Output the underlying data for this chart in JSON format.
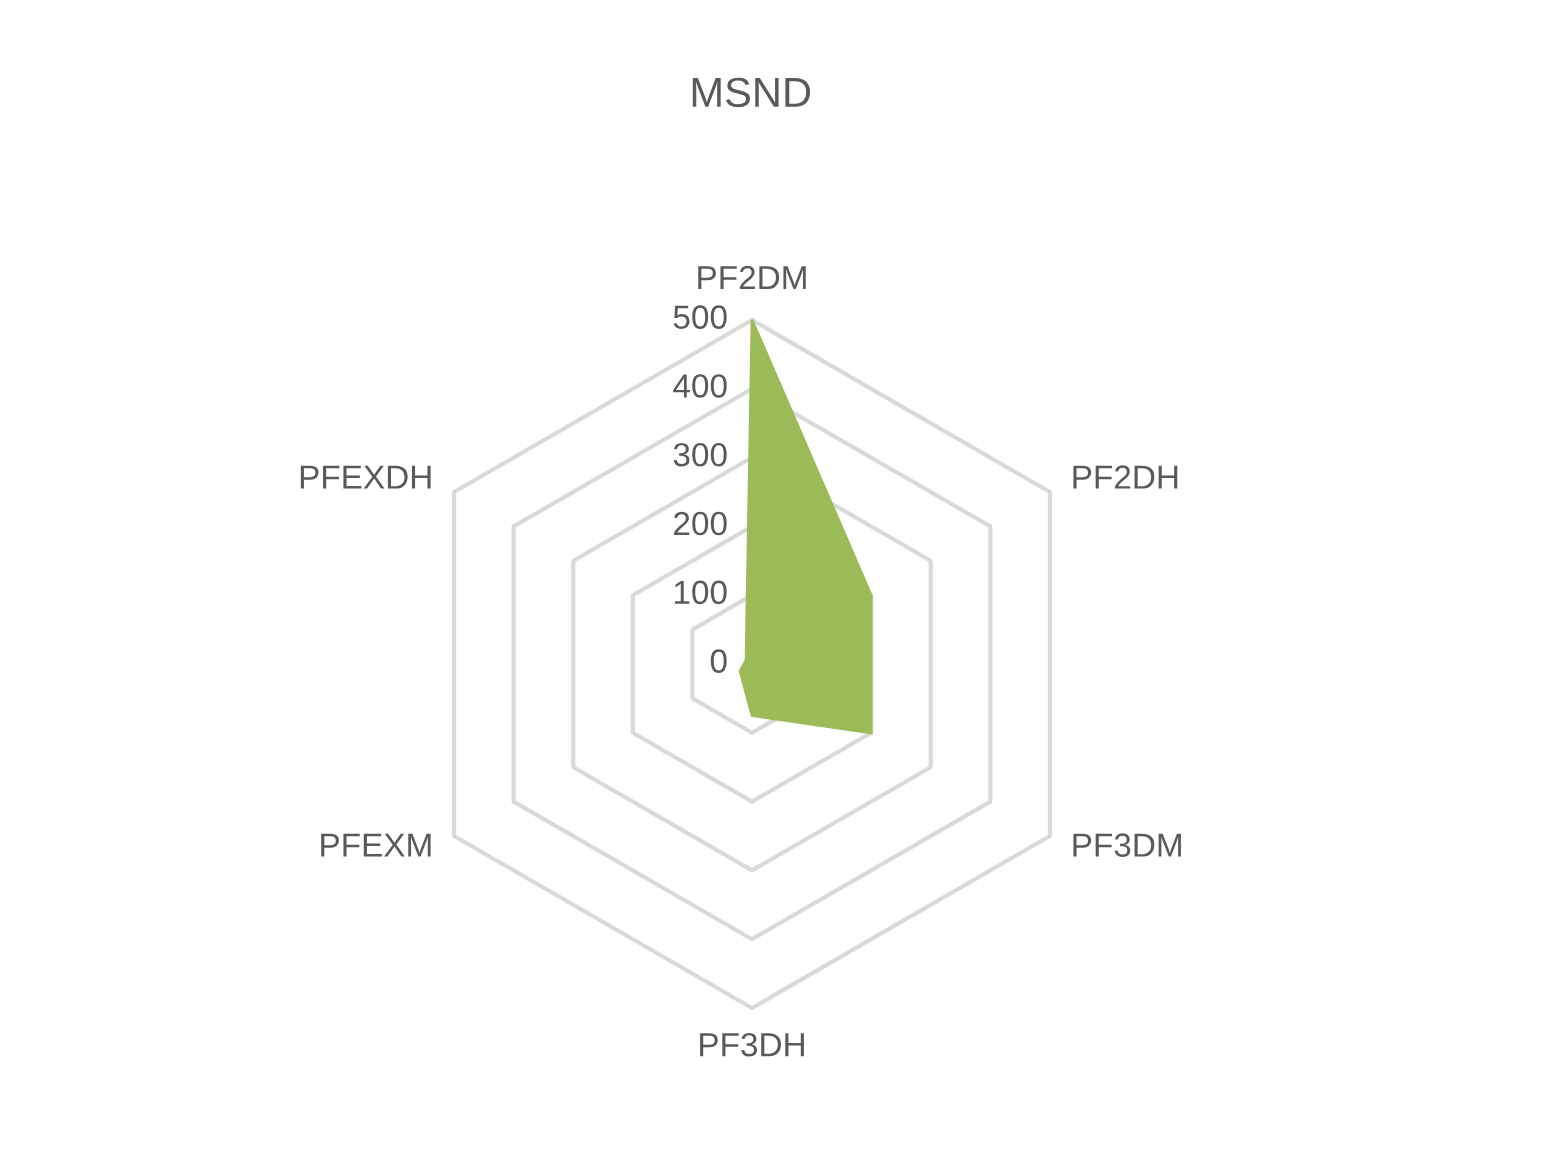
{
  "chart_data": {
    "type": "radar",
    "title": "MSND",
    "categories": [
      "PF2DM",
      "PF2DH",
      "PF3DM",
      "PF3DH",
      "PFEXM",
      "PFEXDH"
    ],
    "series": [
      {
        "color": "#9bbb59",
        "values": [
          500,
          200,
          200,
          75,
          20,
          10
        ]
      }
    ],
    "ylim": [
      0,
      500
    ],
    "yticks": [
      0,
      100,
      200,
      300,
      400,
      500
    ],
    "grid": true
  }
}
